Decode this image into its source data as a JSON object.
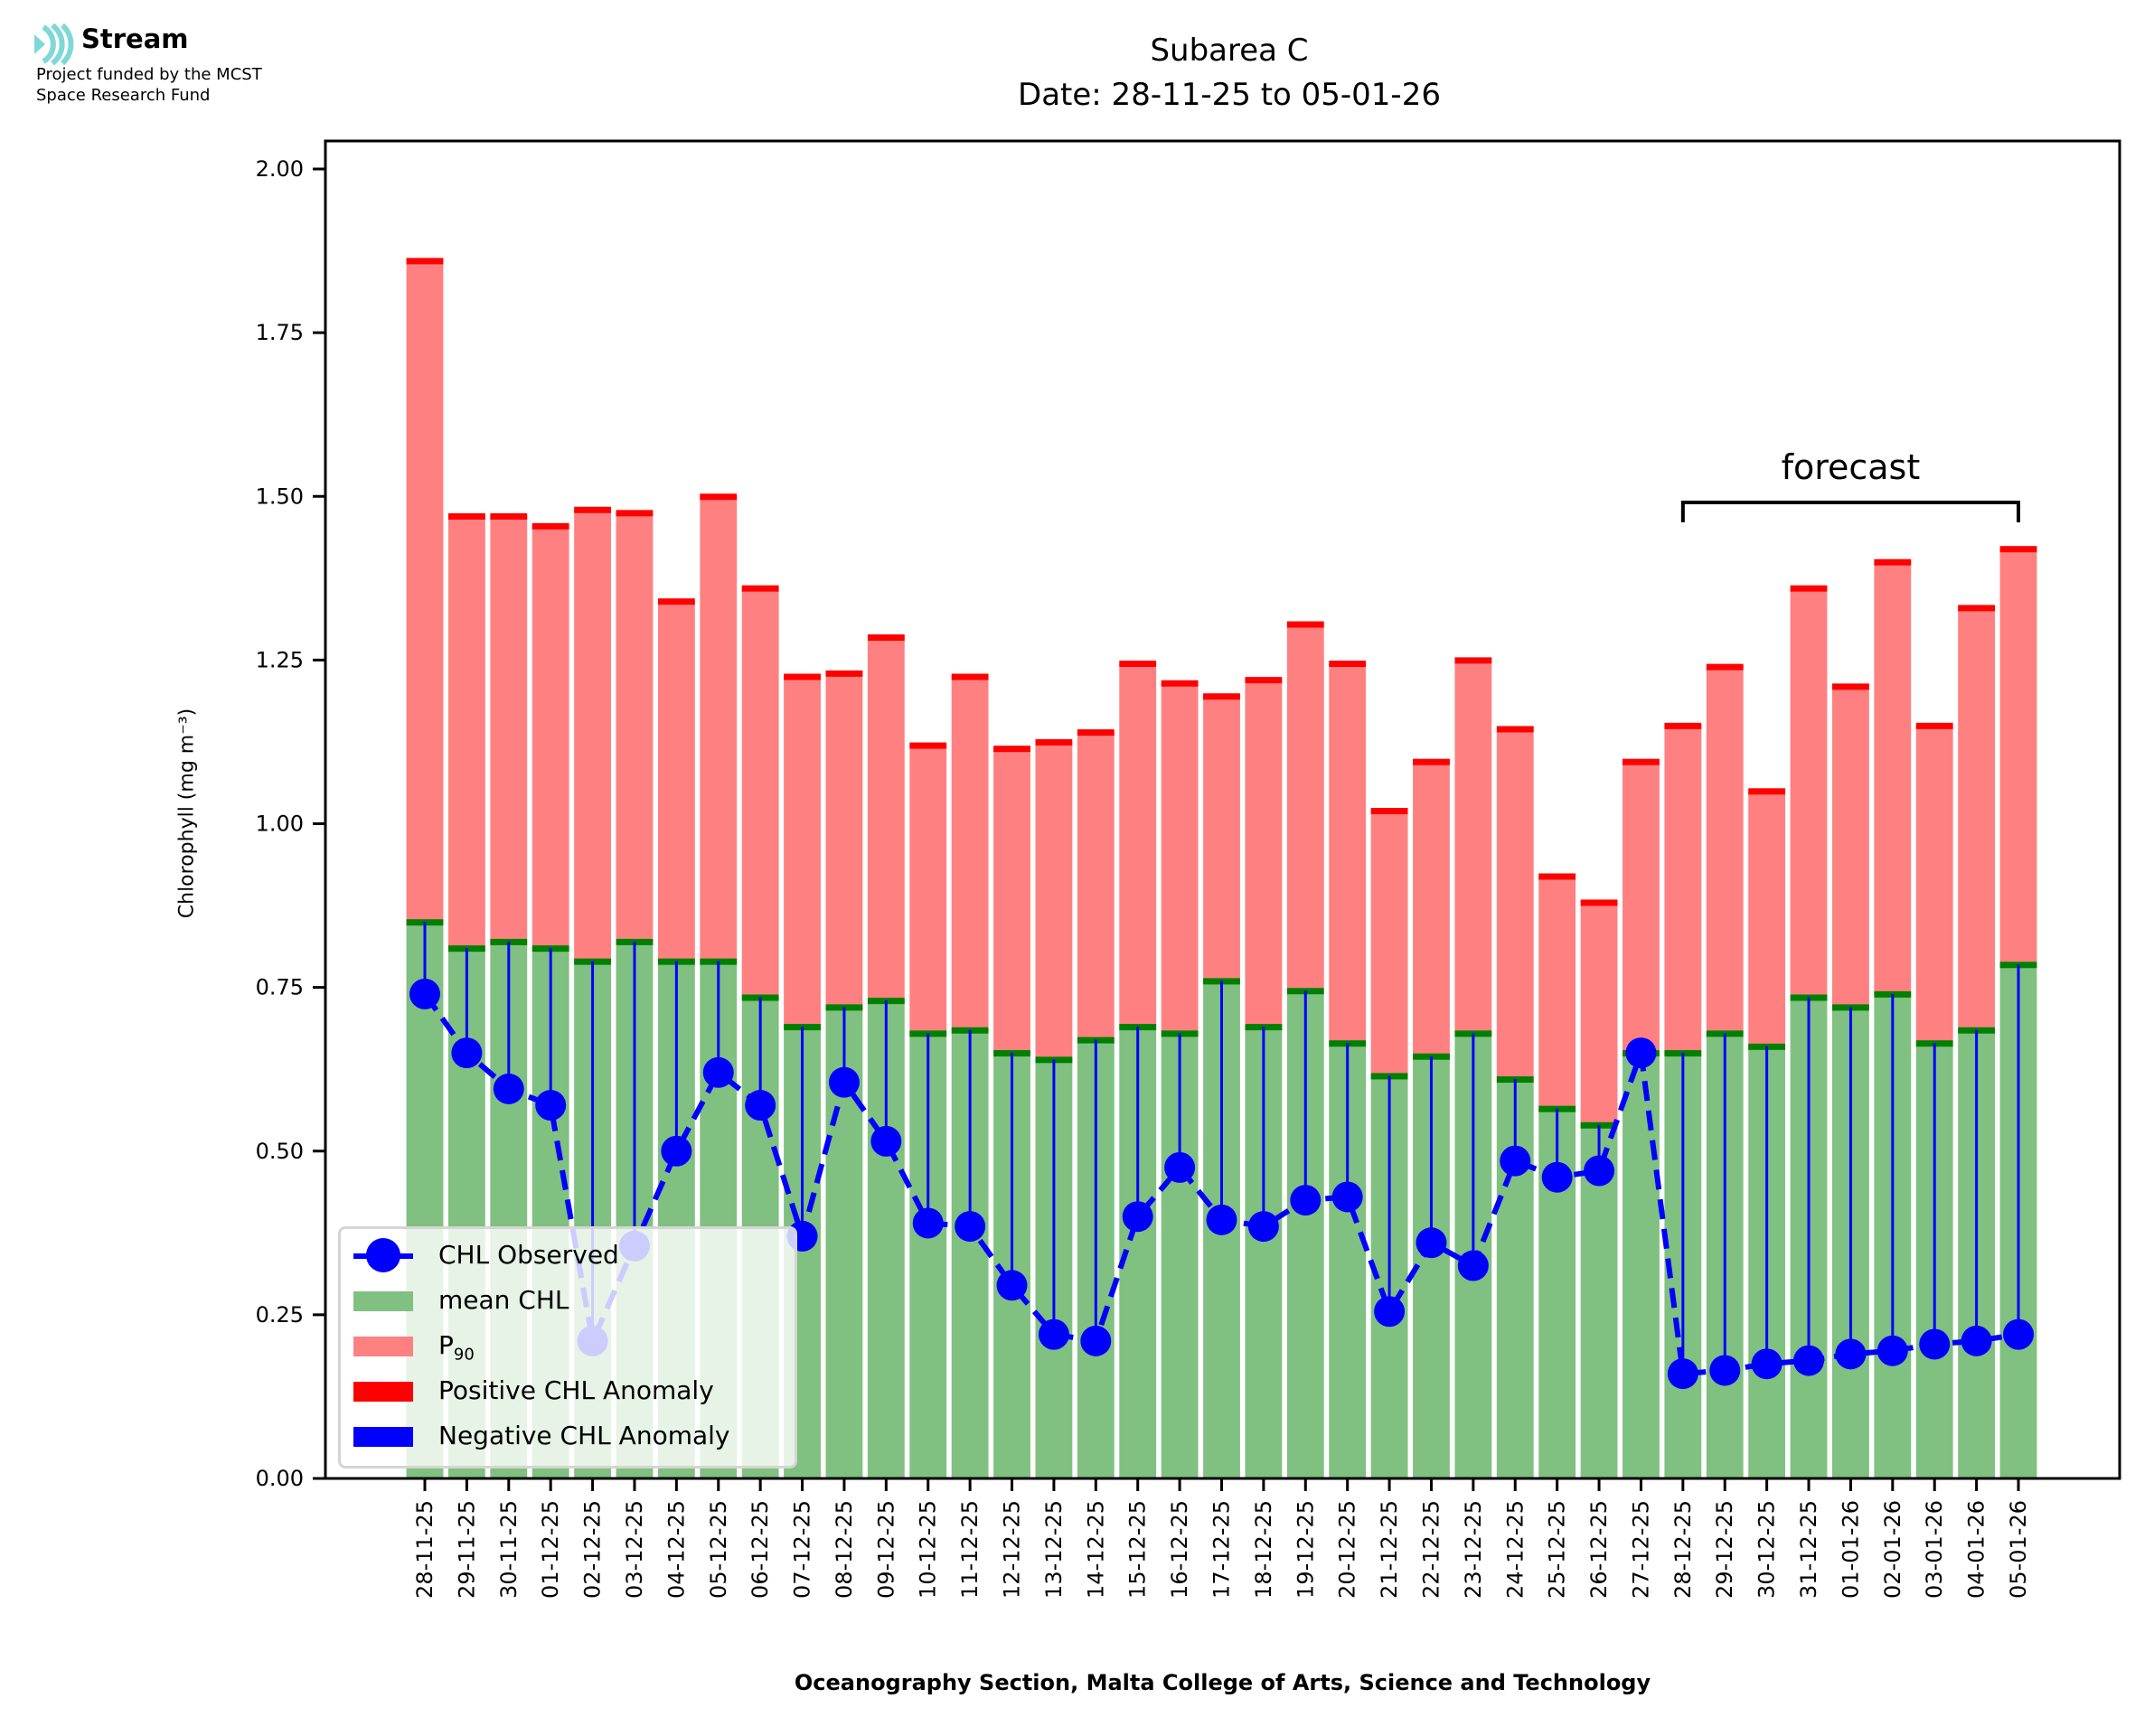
{
  "logo": {
    "name": "Stream",
    "line1": "Project funded by the MCST",
    "line2": "Space Research Fund",
    "icon": "stream-waves-icon",
    "icon_color": "#7fd8d8"
  },
  "chart_data": {
    "type": "bar",
    "title": "Subarea C",
    "subtitle": "Date: 28-11-25 to 05-01-26",
    "xlabel": "Oceanography Section, Malta College of Arts, Science and Technology",
    "ylabel": "Chlorophyll (mg m⁻³)",
    "ylim": [
      0,
      2.05
    ],
    "yticks": [
      "0.00",
      "0.25",
      "0.50",
      "0.75",
      "1.00",
      "1.25",
      "1.50",
      "1.75",
      "2.00"
    ],
    "ytick_values": [
      0,
      0.25,
      0.5,
      0.75,
      1.0,
      1.25,
      1.5,
      1.75,
      2.0
    ],
    "grid": false,
    "legend_position": "lower-left",
    "categories": [
      "28-11-25",
      "29-11-25",
      "30-11-25",
      "01-12-25",
      "02-12-25",
      "03-12-25",
      "04-12-25",
      "05-12-25",
      "06-12-25",
      "07-12-25",
      "08-12-25",
      "09-12-25",
      "10-12-25",
      "11-12-25",
      "12-12-25",
      "13-12-25",
      "14-12-25",
      "15-12-25",
      "16-12-25",
      "17-12-25",
      "18-12-25",
      "19-12-25",
      "20-12-25",
      "21-12-25",
      "22-12-25",
      "23-12-25",
      "24-12-25",
      "25-12-25",
      "26-12-25",
      "27-12-25",
      "28-12-25",
      "29-12-25",
      "30-12-25",
      "31-12-25",
      "01-01-26",
      "02-01-26",
      "03-01-26",
      "04-01-26",
      "05-01-26"
    ],
    "series": [
      {
        "name": "mean CHL",
        "kind": "bar",
        "color": "#80c080",
        "values": [
          0.85,
          0.81,
          0.82,
          0.81,
          0.79,
          0.82,
          0.79,
          0.79,
          0.735,
          0.69,
          0.72,
          0.73,
          0.68,
          0.685,
          0.65,
          0.64,
          0.67,
          0.69,
          0.68,
          0.76,
          0.69,
          0.745,
          0.665,
          0.615,
          0.645,
          0.68,
          0.61,
          0.565,
          0.54,
          0.65,
          0.65,
          0.68,
          0.66,
          0.735,
          0.72,
          0.74,
          0.665,
          0.685,
          0.785
        ]
      },
      {
        "name": "P90",
        "kind": "bar",
        "color": "#ff8080",
        "values": [
          1.86,
          1.47,
          1.47,
          1.455,
          1.48,
          1.475,
          1.34,
          1.5,
          1.36,
          1.225,
          1.23,
          1.285,
          1.12,
          1.225,
          1.115,
          1.125,
          1.14,
          1.245,
          1.215,
          1.195,
          1.22,
          1.305,
          1.245,
          1.02,
          1.095,
          1.25,
          1.145,
          0.92,
          0.88,
          1.095,
          1.15,
          1.24,
          1.05,
          1.36,
          1.21,
          1.4,
          1.15,
          1.33,
          1.42
        ]
      },
      {
        "name": "CHL Observed",
        "kind": "line",
        "color": "#0000ff",
        "values": [
          0.74,
          0.65,
          0.595,
          0.57,
          0.21,
          0.355,
          0.5,
          0.62,
          0.57,
          0.37,
          0.605,
          0.515,
          0.39,
          0.385,
          0.295,
          0.22,
          0.21,
          0.4,
          0.475,
          0.395,
          0.385,
          0.425,
          0.43,
          0.255,
          0.36,
          0.325,
          0.485,
          0.46,
          0.47,
          0.65,
          0.16,
          0.165,
          0.175,
          0.18,
          0.19,
          0.195,
          0.205,
          0.21,
          0.22
        ]
      }
    ],
    "legend": [
      {
        "label": "CHL Observed",
        "kind": "line-marker",
        "color": "#0000ff"
      },
      {
        "label": "mean CHL",
        "kind": "patch",
        "color": "#80c080"
      },
      {
        "label": "P",
        "sub": "90",
        "kind": "patch",
        "color": "#ff8080"
      },
      {
        "label": "Positive CHL Anomaly",
        "kind": "patch",
        "color": "#ff0000"
      },
      {
        "label": "Negative CHL Anomaly",
        "kind": "patch",
        "color": "#0000ff"
      }
    ],
    "annotation": {
      "text": "forecast",
      "from": "28-12-25",
      "to": "05-01-26"
    },
    "colors": {
      "mean_edge": "#008000",
      "positive": "#ff0000",
      "negative": "#0000ff"
    }
  }
}
